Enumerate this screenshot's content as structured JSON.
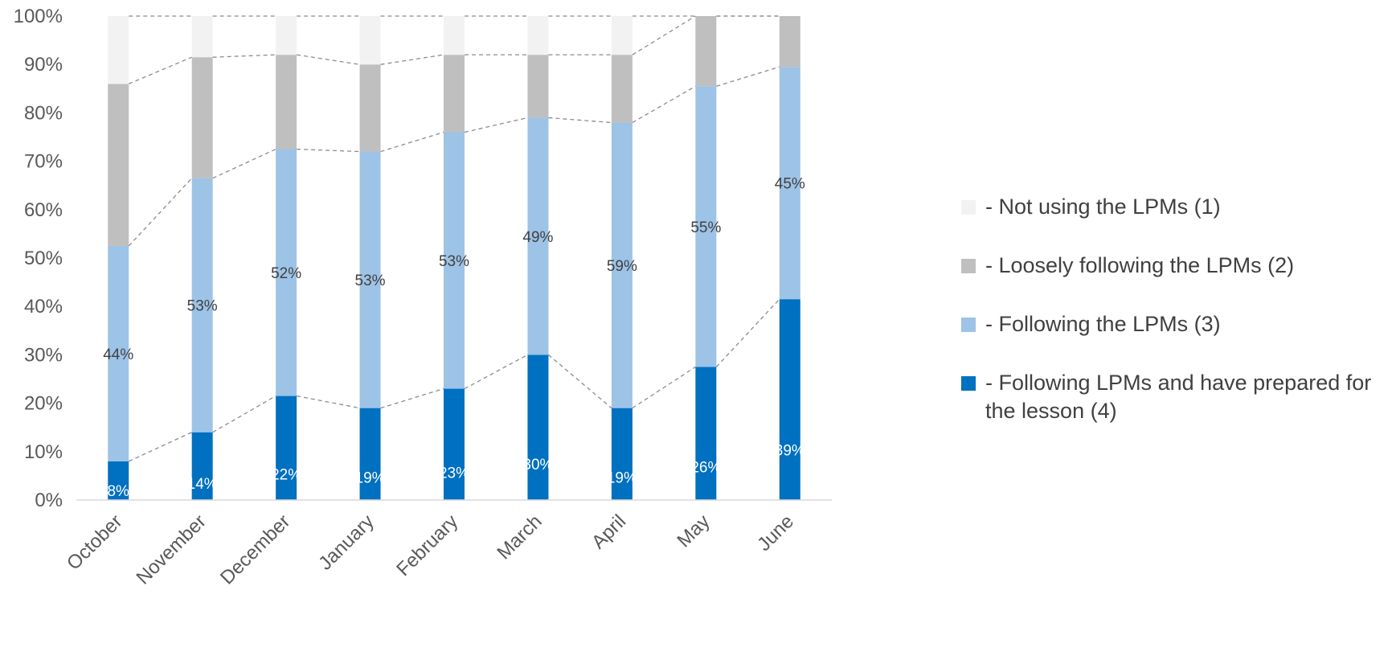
{
  "chart_data": {
    "type": "bar",
    "stacked": true,
    "categories": [
      "October",
      "November",
      "December",
      "January",
      "February",
      "March",
      "April",
      "May",
      "June"
    ],
    "series": [
      {
        "name": "- Following LPMs and have prepared for the lesson (4)",
        "color": "#0070c0",
        "values": [
          8,
          14,
          22,
          19,
          23,
          30,
          19,
          26,
          39
        ],
        "height_values": [
          8,
          14,
          21.5,
          19,
          23,
          30,
          19,
          27.5,
          41.5
        ],
        "labels": [
          "8%",
          "14%",
          "22%",
          "19%",
          "23%",
          "30%",
          "19%",
          "26%",
          "39%"
        ],
        "label_color": "#ffffff"
      },
      {
        "name": "- Following the LPMs (3)",
        "color": "#9dc3e6",
        "values": [
          44,
          53,
          52,
          53,
          53,
          49,
          59,
          55,
          45
        ],
        "height_values": [
          44.5,
          52.5,
          51,
          53,
          53,
          49,
          59,
          58,
          48
        ],
        "labels": [
          "44%",
          "53%",
          "52%",
          "53%",
          "53%",
          "49%",
          "59%",
          "55%",
          "45%"
        ],
        "label_color": "#404040"
      },
      {
        "name": "- Loosely following the LPMs (2)",
        "color": "#bfbfbf",
        "values": [
          33.5,
          25,
          19.5,
          18,
          16,
          13,
          14,
          14.5,
          10.5
        ],
        "labels": [],
        "label_color": "#404040"
      },
      {
        "name": "- Not using the LPMs (1)",
        "color": "#f2f2f2",
        "values": [
          14,
          9,
          8,
          10,
          8,
          8,
          8,
          0,
          0
        ],
        "labels": [],
        "label_color": "#404040"
      }
    ],
    "y_ticks": [
      "0%",
      "10%",
      "20%",
      "30%",
      "40%",
      "50%",
      "60%",
      "70%",
      "80%",
      "90%",
      "100%"
    ],
    "ylim": [
      0,
      100
    ],
    "series_lines": "dashed",
    "grid": false,
    "legend_position": "right"
  },
  "colors": {
    "axis": "#d9d9d9",
    "tick_text": "#595959",
    "connector": "#8c8c8c"
  }
}
